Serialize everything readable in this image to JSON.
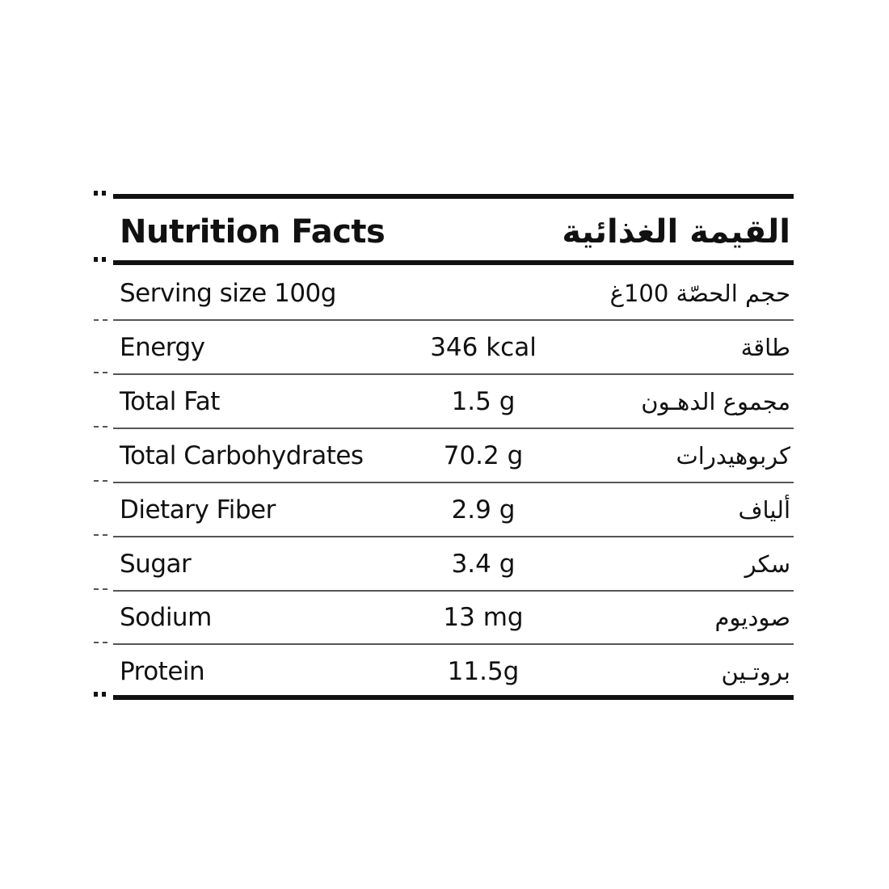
{
  "header": {
    "title_en": "Nutrition Facts",
    "title_ar": "القيمة الغذائية"
  },
  "serving": {
    "label_en": "Serving size 100g",
    "label_ar": "حجم الحصّة 100غ"
  },
  "rows": [
    {
      "en": "Energy",
      "value": "346 kcal",
      "ar": "طاقة"
    },
    {
      "en": "Total Fat",
      "value": "1.5 g",
      "ar": "مجموع الدهـون"
    },
    {
      "en": "Total Carbohydrates",
      "value": "70.2 g",
      "ar": "كربوهيدرات"
    },
    {
      "en": "Dietary Fiber",
      "value": "2.9 g",
      "ar": "ألياف"
    },
    {
      "en": "Sugar",
      "value": "3.4 g",
      "ar": "سكر"
    },
    {
      "en": "Sodium",
      "value": "13 mg",
      "ar": "صوديوم"
    },
    {
      "en": "Protein",
      "value": "11.5g",
      "ar": "بروتـين"
    }
  ]
}
